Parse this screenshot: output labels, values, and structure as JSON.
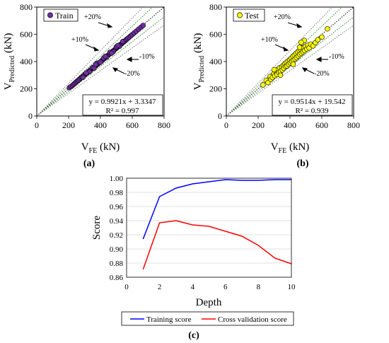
{
  "panels": {
    "a": {
      "label": "(a)",
      "legend": "Train",
      "equation": "y = 0.9921x + 3.3347",
      "r2": "R² = 0.997",
      "annotations": [
        "+20%",
        "+10%",
        "-10%",
        "-20%"
      ]
    },
    "b": {
      "label": "(b)",
      "legend": "Test",
      "equation": "y = 0.9514x + 19.542",
      "r2": "R² = 0.939",
      "annotations": [
        "+20%",
        "+10%",
        "-10%",
        "-20%"
      ]
    },
    "c": {
      "label": "(c)"
    }
  },
  "axis_text": {
    "scatter_ylabel_main": "V",
    "scatter_ylabel_sub": "Predicted",
    "scatter_ylabel_unit": " (kN)",
    "scatter_xlabel_main": "V",
    "scatter_xlabel_sub": "FE",
    "scatter_xlabel_unit": " (kN)"
  },
  "colors": {
    "train": "#7030A0",
    "test": "#FFFF00",
    "training_line": "#0000FF",
    "cv_line": "#FF0000",
    "guide_lines": "#228B22",
    "outer_guides": "#777777"
  },
  "chart_data": [
    {
      "type": "scatter",
      "panel": "a",
      "xlabel": "VFE (kN)",
      "ylabel": "VPredicted (kN)",
      "xlim": [
        0,
        800
      ],
      "ylim": [
        0,
        800
      ],
      "xticks": [
        0,
        200,
        400,
        600,
        800
      ],
      "yticks": [
        0,
        200,
        400,
        600,
        800
      ],
      "series": [
        {
          "name": "Train",
          "points": [
            [
              205,
              208
            ],
            [
              215,
              216
            ],
            [
              225,
              225
            ],
            [
              232,
              233
            ],
            [
              240,
              241
            ],
            [
              248,
              250
            ],
            [
              255,
              257
            ],
            [
              262,
              263
            ],
            [
              270,
              271
            ],
            [
              278,
              279
            ],
            [
              285,
              286
            ],
            [
              292,
              293
            ],
            [
              298,
              300
            ],
            [
              305,
              306
            ],
            [
              312,
              313
            ],
            [
              318,
              318
            ],
            [
              325,
              326
            ],
            [
              332,
              332
            ],
            [
              338,
              338
            ],
            [
              345,
              345
            ],
            [
              352,
              351
            ],
            [
              358,
              357
            ],
            [
              365,
              364
            ],
            [
              372,
              370
            ],
            [
              378,
              377
            ],
            [
              385,
              383
            ],
            [
              392,
              390
            ],
            [
              398,
              396
            ],
            [
              405,
              402
            ],
            [
              412,
              410
            ],
            [
              418,
              416
            ],
            [
              425,
              423
            ],
            [
              432,
              430
            ],
            [
              438,
              436
            ],
            [
              445,
              443
            ],
            [
              452,
              450
            ],
            [
              458,
              456
            ],
            [
              465,
              463
            ],
            [
              472,
              470
            ],
            [
              478,
              476
            ],
            [
              485,
              482
            ],
            [
              492,
              490
            ],
            [
              498,
              496
            ],
            [
              505,
              503
            ],
            [
              512,
              510
            ],
            [
              518,
              516
            ],
            [
              525,
              523
            ],
            [
              532,
              530
            ],
            [
              538,
              536
            ],
            [
              545,
              543
            ],
            [
              552,
              550
            ],
            [
              558,
              556
            ],
            [
              565,
              563
            ],
            [
              572,
              570
            ],
            [
              580,
              578
            ],
            [
              590,
              588
            ],
            [
              600,
              598
            ],
            [
              612,
              610
            ],
            [
              625,
              623
            ],
            [
              640,
              638
            ],
            [
              655,
              652
            ],
            [
              668,
              665
            ],
            [
              350,
              355
            ],
            [
              360,
              352
            ],
            [
              380,
              388
            ],
            [
              400,
              395
            ],
            [
              420,
              425
            ],
            [
              440,
              432
            ],
            [
              460,
              468
            ],
            [
              480,
              472
            ],
            [
              500,
              508
            ],
            [
              520,
              512
            ],
            [
              540,
              547
            ],
            [
              330,
              324
            ],
            [
              310,
              316
            ],
            [
              290,
              284
            ],
            [
              370,
              378
            ],
            [
              430,
              438
            ],
            [
              470,
              462
            ],
            [
              510,
              518
            ]
          ]
        }
      ],
      "trendline": {
        "equation": "y = 0.9921x + 3.3347",
        "r2": 0.997
      },
      "reference_lines": [
        "y = x",
        "+10%",
        "-10%",
        "+20%",
        "-20%"
      ]
    },
    {
      "type": "scatter",
      "panel": "b",
      "xlabel": "VFE (kN)",
      "ylabel": "VPredicted (kN)",
      "xlim": [
        0,
        800
      ],
      "ylim": [
        0,
        800
      ],
      "xticks": [
        0,
        200,
        400,
        600,
        800
      ],
      "yticks": [
        0,
        200,
        400,
        600,
        800
      ],
      "series": [
        {
          "name": "Test",
          "points": [
            [
              230,
              228
            ],
            [
              250,
              262
            ],
            [
              262,
              245
            ],
            [
              275,
              290
            ],
            [
              280,
              268
            ],
            [
              290,
              282
            ],
            [
              298,
              310
            ],
            [
              305,
              295
            ],
            [
              310,
              332
            ],
            [
              318,
              305
            ],
            [
              322,
              342
            ],
            [
              330,
              320
            ],
            [
              335,
              355
            ],
            [
              340,
              328
            ],
            [
              348,
              360
            ],
            [
              352,
              338
            ],
            [
              358,
              372
            ],
            [
              362,
              350
            ],
            [
              368,
              385
            ],
            [
              372,
              362
            ],
            [
              378,
              395
            ],
            [
              382,
              368
            ],
            [
              388,
              402
            ],
            [
              392,
              380
            ],
            [
              398,
              412
            ],
            [
              402,
              390
            ],
            [
              408,
              425
            ],
            [
              412,
              400
            ],
            [
              418,
              438
            ],
            [
              422,
              410
            ],
            [
              428,
              448
            ],
            [
              432,
              418
            ],
            [
              438,
              460
            ],
            [
              442,
              428
            ],
            [
              448,
              470
            ],
            [
              452,
              440
            ],
            [
              458,
              478
            ],
            [
              462,
              452
            ],
            [
              468,
              488
            ],
            [
              472,
              460
            ],
            [
              478,
              498
            ],
            [
              482,
              470
            ],
            [
              488,
              505
            ],
            [
              492,
              480
            ],
            [
              498,
              512
            ],
            [
              505,
              492
            ],
            [
              512,
              520
            ],
            [
              520,
              500
            ],
            [
              530,
              528
            ],
            [
              545,
              515
            ],
            [
              560,
              538
            ],
            [
              575,
              560
            ],
            [
              600,
              580
            ],
            [
              635,
              640
            ],
            [
              490,
              555
            ],
            [
              470,
              540
            ],
            [
              300,
              340
            ],
            [
              340,
              300
            ],
            [
              420,
              380
            ],
            [
              460,
              505
            ]
          ]
        }
      ],
      "trendline": {
        "equation": "y = 0.9514x + 19.542",
        "r2": 0.939
      },
      "reference_lines": [
        "y = x",
        "+10%",
        "-10%",
        "+20%",
        "-20%"
      ]
    },
    {
      "type": "line",
      "panel": "c",
      "xlabel": "Depth",
      "ylabel": "Score",
      "xlim": [
        0,
        10
      ],
      "ylim": [
        0.86,
        1.0
      ],
      "xticks": [
        0,
        2,
        4,
        6,
        8,
        10
      ],
      "yticks": [
        0.86,
        0.88,
        0.9,
        0.92,
        0.94,
        0.96,
        0.98,
        1.0
      ],
      "ytick_labels": [
        "0.86",
        "0.88",
        "0.90",
        "0.92",
        "0.94",
        "0.96",
        "0.98",
        "1.00"
      ],
      "x": [
        1,
        2,
        3,
        4,
        5,
        6,
        7,
        8,
        9,
        10
      ],
      "series": [
        {
          "name": "Training score",
          "values": [
            0.914,
            0.974,
            0.986,
            0.992,
            0.995,
            0.998,
            0.997,
            0.997,
            0.998,
            0.998
          ]
        },
        {
          "name": "Cross validation score",
          "values": [
            0.871,
            0.937,
            0.94,
            0.934,
            0.932,
            0.925,
            0.918,
            0.905,
            0.887,
            0.879
          ]
        }
      ],
      "legend": "bottom"
    }
  ]
}
